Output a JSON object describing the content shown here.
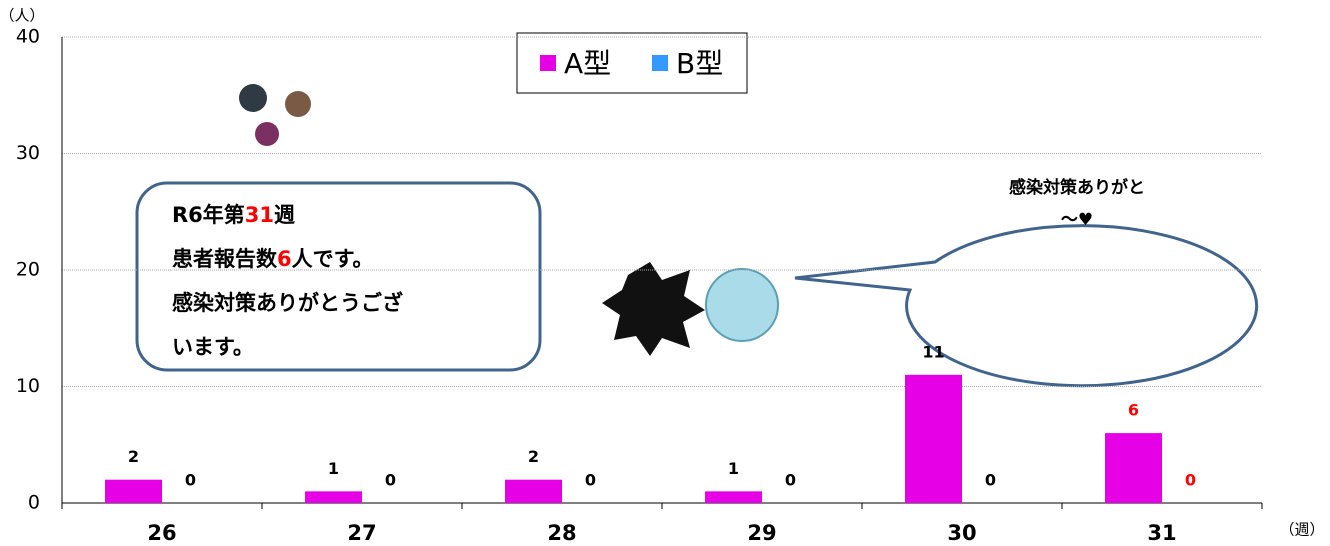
{
  "chart_data": {
    "type": "bar",
    "y_unit": "（人）",
    "x_unit": "（週）",
    "categories": [
      "26",
      "27",
      "28",
      "29",
      "30",
      "31"
    ],
    "series": [
      {
        "name": "A型",
        "color": "#e600e6",
        "values": [
          2,
          1,
          2,
          1,
          11,
          6
        ],
        "label_colors": [
          "#000000",
          "#000000",
          "#000000",
          "#000000",
          "#000000",
          "#ff0000"
        ]
      },
      {
        "name": "B型",
        "color": "#3399ff",
        "values": [
          0,
          0,
          0,
          0,
          0,
          0
        ],
        "label_colors": [
          "#000000",
          "#000000",
          "#000000",
          "#000000",
          "#000000",
          "#ff0000"
        ]
      }
    ],
    "ylim": [
      0,
      40
    ],
    "yticks": [
      0,
      10,
      20,
      30,
      40
    ],
    "grid": true,
    "callout": {
      "lines": [
        [
          "R6年第",
          "31",
          "週"
        ],
        [
          "患者報告数",
          "6",
          "人です。"
        ],
        [
          "感染対策ありがとうござ"
        ],
        [
          "います。"
        ]
      ]
    },
    "speech": {
      "lines": [
        "感染対策ありがと",
        "〜♥"
      ]
    }
  }
}
